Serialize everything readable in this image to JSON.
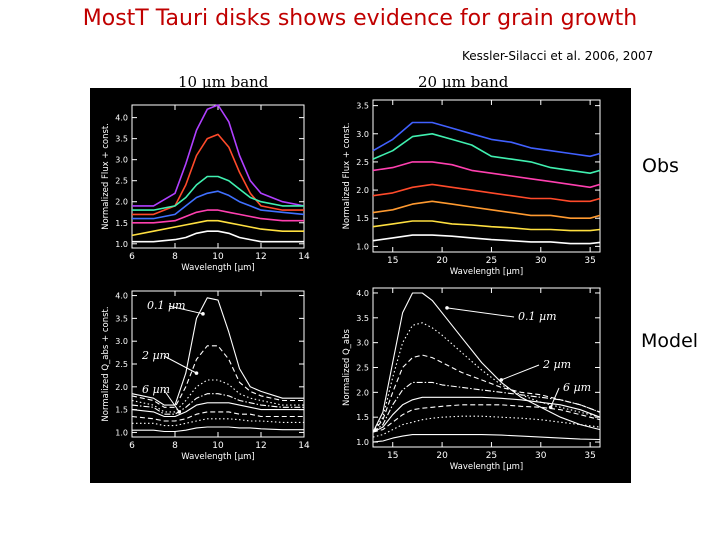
{
  "slide": {
    "title": "MostT Tauri disks shows evidence for grain growth",
    "citation": "Kessler-Silacci et al. 2006, 2007",
    "band_10": "10 µm band",
    "band_20": "20 µm band",
    "row_obs": "Obs",
    "row_model": "Model"
  },
  "chart_data": [
    {
      "type": "line",
      "panel": "obs-10um",
      "xlabel": "Wavelength [µm]",
      "ylabel": "Normalized Flux + const.",
      "xlim": [
        6,
        14
      ],
      "ylim": [
        0.9,
        4.3
      ],
      "xticks": [
        6,
        8,
        10,
        12,
        14
      ],
      "yticks": [
        1.0,
        1.5,
        2.0,
        2.5,
        3.0,
        3.5,
        4.0
      ],
      "x": [
        6,
        7,
        8,
        8.5,
        9,
        9.5,
        10,
        10.5,
        11,
        11.5,
        12,
        13,
        14
      ],
      "series": [
        {
          "color": "#b040ff",
          "values": [
            1.9,
            1.9,
            2.2,
            2.9,
            3.7,
            4.2,
            4.3,
            3.9,
            3.1,
            2.5,
            2.2,
            2.0,
            1.9
          ]
        },
        {
          "color": "#ff4a2a",
          "values": [
            1.7,
            1.7,
            1.9,
            2.4,
            3.1,
            3.5,
            3.6,
            3.3,
            2.7,
            2.2,
            1.9,
            1.8,
            1.8
          ]
        },
        {
          "color": "#40f0b0",
          "values": [
            1.8,
            1.8,
            1.9,
            2.1,
            2.4,
            2.6,
            2.6,
            2.5,
            2.3,
            2.1,
            2.0,
            1.9,
            1.9
          ]
        },
        {
          "color": "#4070ff",
          "values": [
            1.6,
            1.6,
            1.7,
            1.9,
            2.1,
            2.2,
            2.25,
            2.15,
            2.0,
            1.9,
            1.8,
            1.75,
            1.7
          ]
        },
        {
          "color": "#ff40b0",
          "values": [
            1.5,
            1.5,
            1.55,
            1.65,
            1.75,
            1.8,
            1.8,
            1.75,
            1.7,
            1.65,
            1.6,
            1.55,
            1.55
          ]
        },
        {
          "color": "#ffe040",
          "values": [
            1.2,
            1.3,
            1.4,
            1.45,
            1.5,
            1.55,
            1.55,
            1.5,
            1.45,
            1.4,
            1.35,
            1.3,
            1.3
          ]
        },
        {
          "color": "#ffffff",
          "values": [
            1.05,
            1.05,
            1.1,
            1.15,
            1.25,
            1.3,
            1.3,
            1.25,
            1.15,
            1.1,
            1.05,
            1.05,
            1.05
          ]
        }
      ]
    },
    {
      "type": "line",
      "panel": "obs-20um",
      "xlabel": "Wavelength [µm]",
      "ylabel": "Normalized Flux + const.",
      "xlim": [
        13,
        36
      ],
      "ylim": [
        0.9,
        3.6
      ],
      "xticks": [
        15,
        20,
        25,
        30,
        35
      ],
      "yticks": [
        1.0,
        1.5,
        2.0,
        2.5,
        3.0,
        3.5
      ],
      "x": [
        13,
        15,
        17,
        19,
        21,
        23,
        25,
        27,
        29,
        31,
        33,
        35,
        36
      ],
      "series": [
        {
          "color": "#4060ff",
          "values": [
            2.7,
            2.9,
            3.2,
            3.2,
            3.1,
            3.0,
            2.9,
            2.85,
            2.75,
            2.7,
            2.65,
            2.6,
            2.65
          ]
        },
        {
          "color": "#40f0b0",
          "values": [
            2.55,
            2.7,
            2.95,
            3.0,
            2.9,
            2.8,
            2.6,
            2.55,
            2.5,
            2.4,
            2.35,
            2.3,
            2.35
          ]
        },
        {
          "color": "#ff40b0",
          "values": [
            2.35,
            2.4,
            2.5,
            2.5,
            2.45,
            2.35,
            2.3,
            2.25,
            2.2,
            2.15,
            2.1,
            2.05,
            2.1
          ]
        },
        {
          "color": "#ff4a2a",
          "values": [
            1.9,
            1.95,
            2.05,
            2.1,
            2.05,
            2.0,
            1.95,
            1.9,
            1.85,
            1.85,
            1.8,
            1.8,
            1.85
          ]
        },
        {
          "color": "#ff9a30",
          "values": [
            1.6,
            1.65,
            1.75,
            1.8,
            1.75,
            1.7,
            1.65,
            1.6,
            1.55,
            1.55,
            1.5,
            1.5,
            1.55
          ]
        },
        {
          "color": "#ffe040",
          "values": [
            1.35,
            1.4,
            1.45,
            1.45,
            1.4,
            1.38,
            1.35,
            1.33,
            1.3,
            1.3,
            1.28,
            1.28,
            1.3
          ]
        },
        {
          "color": "#ffffff",
          "values": [
            1.1,
            1.15,
            1.2,
            1.2,
            1.18,
            1.15,
            1.12,
            1.1,
            1.08,
            1.08,
            1.05,
            1.05,
            1.07
          ]
        }
      ]
    },
    {
      "type": "line",
      "panel": "model-10um",
      "xlabel": "Wavelength [µm]",
      "ylabel": "Normalized Q_abs + const.",
      "xlim": [
        6,
        14
      ],
      "ylim": [
        0.9,
        4.1
      ],
      "xticks": [
        6,
        8,
        10,
        12,
        14
      ],
      "yticks": [
        1.0,
        1.5,
        2.0,
        2.5,
        3.0,
        3.5,
        4.0
      ],
      "annotations": [
        "0.1 µm",
        "2 µm",
        "6 µm"
      ],
      "x": [
        6,
        7,
        7.5,
        8,
        8.5,
        9,
        9.5,
        10,
        10.5,
        11,
        11.5,
        12,
        13,
        14
      ],
      "series": [
        {
          "style": "solid",
          "values": [
            1.85,
            1.75,
            1.6,
            1.6,
            2.3,
            3.5,
            3.95,
            3.9,
            3.2,
            2.4,
            2.0,
            1.9,
            1.75,
            1.75
          ]
        },
        {
          "style": "dashed",
          "values": [
            1.8,
            1.7,
            1.55,
            1.55,
            2.0,
            2.6,
            2.9,
            2.9,
            2.6,
            2.1,
            1.9,
            1.8,
            1.7,
            1.7
          ]
        },
        {
          "style": "dotted",
          "values": [
            1.7,
            1.6,
            1.45,
            1.45,
            1.7,
            2.0,
            2.15,
            2.15,
            2.05,
            1.85,
            1.75,
            1.7,
            1.6,
            1.6
          ]
        },
        {
          "style": "dashdot",
          "values": [
            1.6,
            1.55,
            1.4,
            1.4,
            1.55,
            1.75,
            1.85,
            1.85,
            1.8,
            1.7,
            1.65,
            1.6,
            1.55,
            1.55
          ]
        },
        {
          "style": "solid",
          "values": [
            1.5,
            1.45,
            1.35,
            1.35,
            1.45,
            1.6,
            1.65,
            1.65,
            1.65,
            1.6,
            1.55,
            1.5,
            1.5,
            1.5
          ]
        },
        {
          "style": "dashed",
          "values": [
            1.35,
            1.3,
            1.25,
            1.25,
            1.3,
            1.4,
            1.45,
            1.45,
            1.45,
            1.4,
            1.4,
            1.35,
            1.35,
            1.35
          ]
        },
        {
          "style": "dotted",
          "values": [
            1.2,
            1.2,
            1.15,
            1.15,
            1.2,
            1.25,
            1.3,
            1.3,
            1.3,
            1.28,
            1.25,
            1.25,
            1.22,
            1.22
          ]
        },
        {
          "style": "solid",
          "values": [
            1.05,
            1.05,
            1.02,
            1.02,
            1.05,
            1.1,
            1.12,
            1.12,
            1.12,
            1.1,
            1.1,
            1.08,
            1.06,
            1.06
          ]
        }
      ]
    },
    {
      "type": "line",
      "panel": "model-20um",
      "xlabel": "Wavelength [µm]",
      "ylabel": "Normalized Q_abs",
      "xlim": [
        13,
        36
      ],
      "ylim": [
        0.9,
        4.1
      ],
      "xticks": [
        15,
        20,
        25,
        30,
        35
      ],
      "yticks": [
        1.0,
        1.5,
        2.0,
        2.5,
        3.0,
        3.5,
        4.0
      ],
      "annotations": [
        "0.1 µm",
        "2 µm",
        "6 µm"
      ],
      "x": [
        13,
        14,
        15,
        16,
        17,
        18,
        19,
        20,
        22,
        24,
        26,
        28,
        30,
        32,
        34,
        36
      ],
      "series": [
        {
          "style": "solid",
          "values": [
            1.2,
            1.6,
            2.6,
            3.6,
            4.0,
            4.0,
            3.85,
            3.6,
            3.1,
            2.6,
            2.2,
            1.9,
            1.7,
            1.5,
            1.35,
            1.25
          ]
        },
        {
          "style": "dotted",
          "values": [
            1.2,
            1.5,
            2.3,
            3.0,
            3.35,
            3.4,
            3.3,
            3.15,
            2.8,
            2.45,
            2.15,
            1.95,
            1.8,
            1.7,
            1.6,
            1.5
          ]
        },
        {
          "style": "dashed",
          "values": [
            1.2,
            1.45,
            2.0,
            2.5,
            2.7,
            2.75,
            2.7,
            2.6,
            2.4,
            2.25,
            2.1,
            2.0,
            1.95,
            1.85,
            1.75,
            1.6
          ]
        },
        {
          "style": "dashdot",
          "values": [
            1.2,
            1.35,
            1.75,
            2.05,
            2.2,
            2.2,
            2.2,
            2.15,
            2.1,
            2.05,
            2.0,
            1.95,
            1.9,
            1.85,
            1.75,
            1.6
          ]
        },
        {
          "style": "solid",
          "values": [
            1.2,
            1.3,
            1.55,
            1.75,
            1.85,
            1.9,
            1.9,
            1.9,
            1.9,
            1.9,
            1.88,
            1.85,
            1.8,
            1.75,
            1.65,
            1.5
          ]
        },
        {
          "style": "dashed",
          "values": [
            1.2,
            1.25,
            1.4,
            1.55,
            1.65,
            1.68,
            1.7,
            1.72,
            1.75,
            1.75,
            1.75,
            1.72,
            1.7,
            1.65,
            1.55,
            1.45
          ]
        },
        {
          "style": "dotted",
          "values": [
            1.1,
            1.15,
            1.25,
            1.35,
            1.4,
            1.45,
            1.48,
            1.5,
            1.52,
            1.52,
            1.5,
            1.48,
            1.45,
            1.4,
            1.35,
            1.3
          ]
        },
        {
          "style": "solid",
          "values": [
            1.0,
            1.02,
            1.08,
            1.12,
            1.15,
            1.15,
            1.15,
            1.15,
            1.15,
            1.15,
            1.14,
            1.12,
            1.1,
            1.08,
            1.06,
            1.05
          ]
        }
      ]
    }
  ]
}
